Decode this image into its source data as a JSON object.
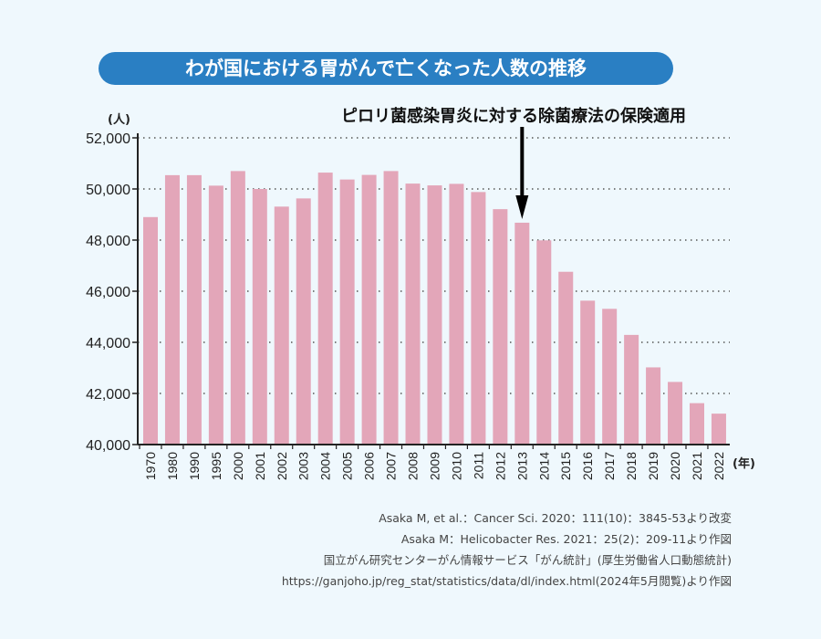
{
  "chart_data": {
    "type": "bar",
    "title": "わが国における胃がんで亡くなった人数の推移",
    "ylabel": "(人)",
    "xlabel": "(年)",
    "ylim": [
      40000,
      52000
    ],
    "yticks": [
      "40,000",
      "42,000",
      "44,000",
      "46,000",
      "48,000",
      "50,000",
      "52,000"
    ],
    "grid": true,
    "bar_color": "#e3a6b9",
    "categories": [
      "1970",
      "1980",
      "1990",
      "1995",
      "2000",
      "2001",
      "2002",
      "2003",
      "2004",
      "2005",
      "2006",
      "2007",
      "2008",
      "2009",
      "2010",
      "2011",
      "2012",
      "2013",
      "2014",
      "2015",
      "2016",
      "2017",
      "2018",
      "2019",
      "2020",
      "2021",
      "2022"
    ],
    "values": [
      48900,
      50540,
      50540,
      50130,
      50700,
      50000,
      49310,
      49630,
      50640,
      50370,
      50550,
      50700,
      50210,
      50140,
      50200,
      49880,
      49210,
      48680,
      47990,
      46760,
      45630,
      45310,
      44290,
      43020,
      42450,
      41620,
      41210
    ],
    "annotation": {
      "text": "ピロリ菌感染胃炎に対する除菌療法の保険適用",
      "category": "2013"
    }
  },
  "sources": [
    "Asaka M, et al.：Cancer Sci. 2020：111(10)：3845-53より改変",
    "Asaka M：Helicobacter Res. 2021：25(2)：209-11より作図",
    "国立がん研究センターがん情報サービス「がん統計」(厚生労働省人口動態統計)",
    "https://ganjoho.jp/reg_stat/statistics/data/dl/index.html(2024年5月閲覧)より作図"
  ],
  "colors": {
    "title_bg": "#2a7fc3",
    "background": "#eff8fd"
  }
}
